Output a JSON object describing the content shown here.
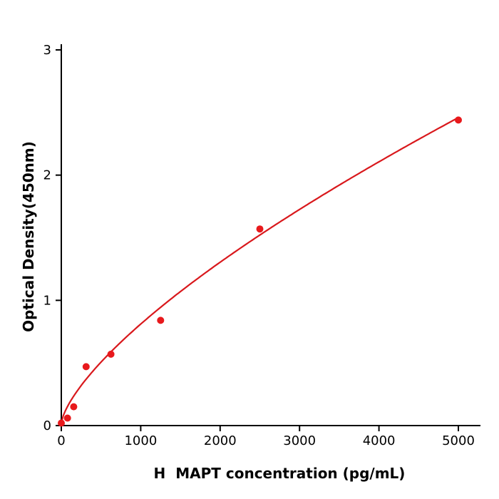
{
  "chart_data": {
    "type": "scatter",
    "title": "",
    "xlabel": "H  MAPT concentration (pg/mL)",
    "ylabel": "Optical Density(450nm)",
    "xlim": [
      0,
      5000
    ],
    "ylim": [
      0,
      3
    ],
    "x_ticks": [
      0,
      1000,
      2000,
      3000,
      4000,
      5000
    ],
    "y_ticks": [
      0,
      1,
      2,
      3
    ],
    "grid": false,
    "legend": null,
    "marker_color": "#e8191c",
    "line_color": "#d9181c",
    "axis_color": "#000000",
    "points": {
      "x": [
        0,
        78,
        156,
        312,
        625,
        1250,
        2500,
        5000
      ],
      "y": [
        0.02,
        0.06,
        0.15,
        0.47,
        0.57,
        0.84,
        1.57,
        2.44
      ]
    },
    "fit_curve": {
      "model": "power",
      "a": 0.00628,
      "b": 0.7,
      "c": 0.02,
      "x_start": 0,
      "x_end": 5000
    }
  }
}
